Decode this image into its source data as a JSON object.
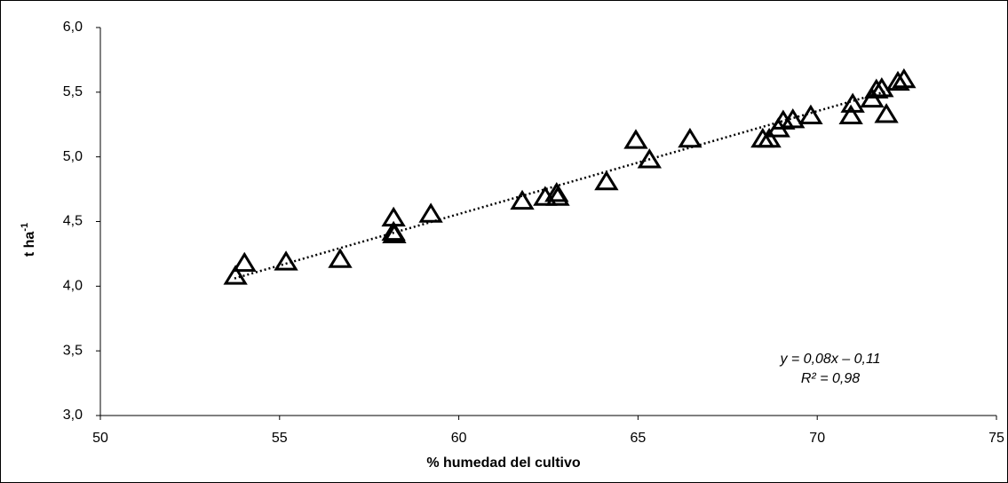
{
  "chart_data": {
    "type": "scatter",
    "x_label": "% humedad del cultivo",
    "y_label": "t ha",
    "y_label_sup": "-1",
    "x": [
      53.77,
      54.02,
      55.18,
      56.69,
      58.18,
      58.18,
      58.2,
      59.22,
      61.77,
      62.41,
      62.73,
      62.76,
      64.12,
      64.94,
      65.32,
      66.45,
      68.48,
      68.66,
      68.91,
      69.05,
      69.32,
      69.82,
      70.94,
      70.99,
      71.53,
      71.65,
      71.8,
      71.93,
      72.25,
      72.42
    ],
    "values": [
      4.07,
      4.17,
      4.18,
      4.2,
      4.52,
      4.41,
      4.39,
      4.55,
      4.65,
      4.68,
      4.71,
      4.68,
      4.8,
      5.12,
      4.97,
      5.13,
      5.13,
      5.13,
      5.21,
      5.27,
      5.28,
      5.31,
      5.31,
      5.4,
      5.44,
      5.51,
      5.52,
      5.32,
      5.57,
      5.59
    ],
    "color": "#000000",
    "trendline": {
      "x": [
        53.74,
        72.47
      ],
      "y": [
        4.06,
        5.55
      ]
    },
    "equation": "y = 0,08x – 0,11",
    "r_squared": "R² = 0,98",
    "xlim": [
      50,
      75
    ],
    "xticks": [
      50,
      55,
      60,
      65,
      70,
      75
    ],
    "ylim": [
      3,
      6
    ],
    "yticks": [
      {
        "value": 3,
        "label": "3,0"
      },
      {
        "value": 3.5,
        "label": "3,5"
      },
      {
        "value": 4,
        "label": "4,0"
      },
      {
        "value": 4.5,
        "label": "4,5"
      },
      {
        "value": 5,
        "label": "5,0"
      },
      {
        "value": 5.5,
        "label": "5,5"
      },
      {
        "value": 6,
        "label": "6,0"
      }
    ],
    "grid": false
  }
}
